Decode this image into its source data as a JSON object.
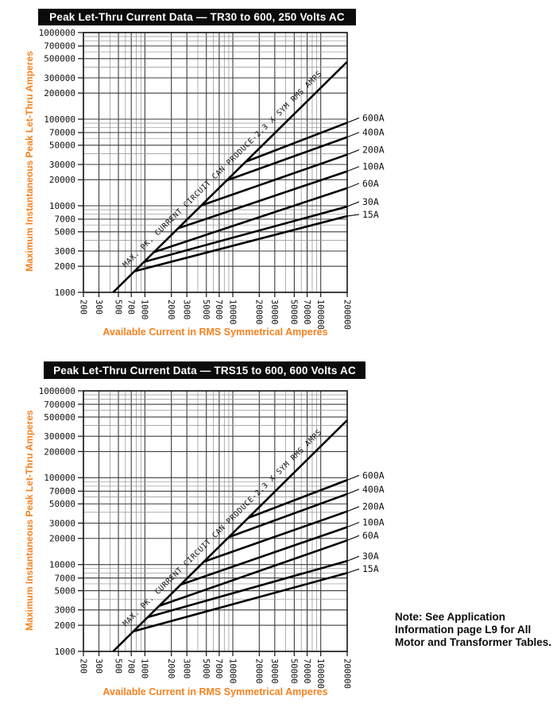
{
  "colors": {
    "accent_orange": "#F58220",
    "ink_black": "#0b0b0b",
    "grid_major": "#3d3d3d",
    "grid_minor": "#8f8f8f",
    "curve_black": "#000000"
  },
  "note": {
    "lines": [
      "Note: See Application",
      "Information page L9 for All",
      "Motor and Transformer Tables."
    ]
  },
  "chart_data": [
    {
      "type": "line",
      "scale": "log-log",
      "title": "Peak Let-Thru Current Data — TR30 to 600, 250 Volts AC",
      "xlabel": "Available Current in RMS Symmetrical Amperes",
      "ylabel": "Maximum Instantaneous Peak Let-Thru Amperes",
      "xlim": [
        200,
        200000
      ],
      "ylim": [
        1000,
        1000000
      ],
      "x_ticks": [
        200,
        300,
        500,
        700,
        1000,
        2000,
        3000,
        5000,
        7000,
        10000,
        20000,
        30000,
        50000,
        70000,
        100000,
        200000
      ],
      "y_ticks": [
        1000,
        2000,
        3000,
        5000,
        7000,
        10000,
        20000,
        30000,
        50000,
        70000,
        100000,
        200000,
        300000,
        500000,
        700000,
        1000000
      ],
      "diagonal": {
        "label": "MAX. PK. CURRENT CIRCUIT CAN PRODUCE-2.3 X SYM RMS AMPS",
        "relation": "peak = 2.3 × symmetrical RMS",
        "points": [
          [
            435,
            1000
          ],
          [
            200000,
            460000
          ]
        ]
      },
      "series": [
        {
          "name": "600A",
          "points": [
            [
              14000,
              32200
            ],
            [
              200000,
              91000
            ]
          ]
        },
        {
          "name": "400A",
          "points": [
            [
              8500,
              19600
            ],
            [
              200000,
              62000
            ]
          ]
        },
        {
          "name": "200A",
          "points": [
            [
              4400,
              10100
            ],
            [
              200000,
              39000
            ]
          ]
        },
        {
          "name": "100A",
          "points": [
            [
              2400,
              5500
            ],
            [
              200000,
              25000
            ]
          ]
        },
        {
          "name": "60A",
          "points": [
            [
              1250,
              2900
            ],
            [
              200000,
              16000
            ]
          ]
        },
        {
          "name": "30A",
          "points": [
            [
              980,
              2250
            ],
            [
              200000,
              9800
            ]
          ]
        },
        {
          "name": "15A",
          "points": [
            [
              760,
              1750
            ],
            [
              200000,
              7600
            ]
          ]
        }
      ]
    },
    {
      "type": "line",
      "scale": "log-log",
      "title": "Peak Let-Thru Current Data — TRS15 to 600, 600 Volts AC",
      "xlabel": "Available Current in RMS Symmetrical Amperes",
      "ylabel": "Maximum Instantaneous Peak Let-Thru Amperes",
      "xlim": [
        200,
        200000
      ],
      "ylim": [
        1000,
        1000000
      ],
      "x_ticks": [
        200,
        300,
        500,
        700,
        1000,
        2000,
        3000,
        5000,
        7000,
        10000,
        20000,
        30000,
        50000,
        70000,
        100000,
        200000
      ],
      "y_ticks": [
        1000,
        2000,
        3000,
        5000,
        7000,
        10000,
        20000,
        30000,
        50000,
        70000,
        100000,
        200000,
        300000,
        500000,
        700000,
        1000000
      ],
      "diagonal": {
        "label": "MAX. PK. CURRENT CIRCUIT CAN PRODUCE-2.3 X SYM RMS AMPS",
        "relation": "peak = 2.3 × symmetrical RMS",
        "points": [
          [
            435,
            1000
          ],
          [
            200000,
            460000
          ]
        ]
      },
      "series": [
        {
          "name": "600A",
          "points": [
            [
              15000,
              34500
            ],
            [
              200000,
              94000
            ]
          ]
        },
        {
          "name": "400A",
          "points": [
            [
              9000,
              20700
            ],
            [
              200000,
              65000
            ]
          ]
        },
        {
          "name": "200A",
          "points": [
            [
              4700,
              10800
            ],
            [
              200000,
              41000
            ]
          ]
        },
        {
          "name": "100A",
          "points": [
            [
              2550,
              5870
            ],
            [
              200000,
              27000
            ]
          ]
        },
        {
          "name": "60A",
          "points": [
            [
              1450,
              3340
            ],
            [
              200000,
              19000
            ]
          ]
        },
        {
          "name": "30A",
          "points": [
            [
              1080,
              2480
            ],
            [
              200000,
              11000
            ]
          ]
        },
        {
          "name": "15A",
          "points": [
            [
              740,
              1700
            ],
            [
              200000,
              8000
            ]
          ]
        }
      ]
    }
  ]
}
